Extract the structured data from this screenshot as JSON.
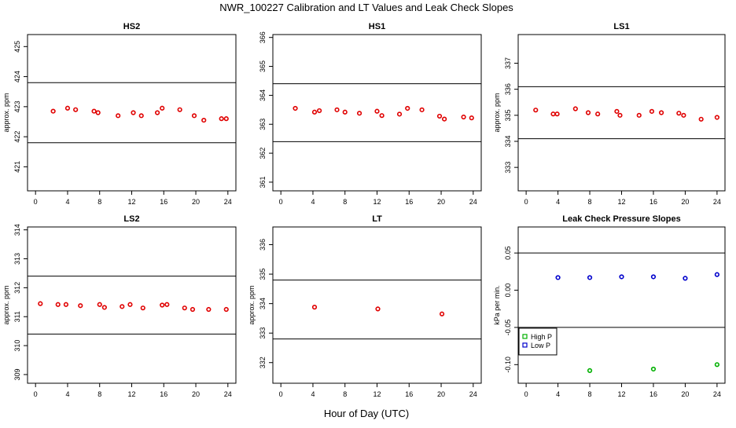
{
  "title": "NWR_100227  Calibration and LT Values and Leak Check Slopes",
  "x_axis_label": "Hour of Day (UTC)",
  "colors": {
    "marker": "#e00000",
    "high_p": "#00b000",
    "low_p": "#0000cc",
    "line": "#000000"
  },
  "chart_data": [
    {
      "type": "scatter",
      "title": "HS2",
      "ylabel": "approx. ppm",
      "xlim": [
        -1,
        25
      ],
      "ylim": [
        420.2,
        425.4
      ],
      "xticks": [
        0,
        4,
        8,
        12,
        16,
        20,
        24
      ],
      "yticks": [
        421,
        422,
        423,
        424,
        425
      ],
      "hlines": [
        421.8,
        423.8
      ],
      "series": [
        {
          "x": [
            2.2,
            4.0,
            5.0,
            7.3,
            7.8,
            10.3,
            12.2,
            13.2,
            15.2,
            15.8,
            18.0,
            19.8,
            21.0,
            23.2,
            23.8
          ],
          "y": [
            422.85,
            422.95,
            422.9,
            422.85,
            422.8,
            422.7,
            422.8,
            422.7,
            422.8,
            422.95,
            422.9,
            422.7,
            422.55,
            422.6,
            422.6
          ]
        }
      ]
    },
    {
      "type": "scatter",
      "title": "HS1",
      "ylabel": "",
      "xlim": [
        -1,
        25
      ],
      "ylim": [
        360.7,
        366.1
      ],
      "xticks": [
        0,
        4,
        8,
        12,
        16,
        20,
        24
      ],
      "yticks": [
        361,
        362,
        363,
        364,
        365,
        366
      ],
      "hlines": [
        362.4,
        364.4
      ],
      "series": [
        {
          "x": [
            1.8,
            4.2,
            4.8,
            7.0,
            8.0,
            9.8,
            12.0,
            12.6,
            14.8,
            15.8,
            17.6,
            19.8,
            20.4,
            22.8,
            23.8
          ],
          "y": [
            363.55,
            363.42,
            363.47,
            363.5,
            363.42,
            363.38,
            363.45,
            363.3,
            363.35,
            363.55,
            363.5,
            363.28,
            363.18,
            363.25,
            363.22
          ]
        }
      ]
    },
    {
      "type": "scatter",
      "title": "LS1",
      "ylabel": "approx. ppm",
      "xlim": [
        -1,
        25
      ],
      "ylim": [
        332.1,
        338.1
      ],
      "xticks": [
        0,
        4,
        8,
        12,
        16,
        20,
        24
      ],
      "yticks": [
        333,
        334,
        335,
        336,
        337
      ],
      "hlines": [
        334.1,
        336.1
      ],
      "series": [
        {
          "x": [
            1.2,
            3.4,
            3.9,
            6.2,
            7.8,
            9.0,
            11.4,
            11.8,
            14.2,
            15.8,
            17.0,
            19.2,
            19.8,
            22.0,
            24.0
          ],
          "y": [
            335.2,
            335.05,
            335.05,
            335.25,
            335.1,
            335.05,
            335.15,
            335.0,
            335.0,
            335.15,
            335.1,
            335.08,
            335.0,
            334.85,
            334.92
          ]
        }
      ]
    },
    {
      "type": "scatter",
      "title": "LS2",
      "ylabel": "approx. ppm",
      "xlim": [
        -1,
        25
      ],
      "ylim": [
        308.7,
        314.1
      ],
      "xticks": [
        0,
        4,
        8,
        12,
        16,
        20,
        24
      ],
      "yticks": [
        309,
        310,
        311,
        312,
        313,
        314
      ],
      "hlines": [
        310.4,
        312.4
      ],
      "series": [
        {
          "x": [
            0.6,
            2.8,
            3.8,
            5.6,
            8.0,
            8.6,
            10.8,
            11.8,
            13.4,
            15.8,
            16.4,
            18.6,
            19.6,
            21.6,
            23.8
          ],
          "y": [
            311.45,
            311.42,
            311.42,
            311.38,
            311.42,
            311.32,
            311.35,
            311.42,
            311.3,
            311.4,
            311.42,
            311.3,
            311.25,
            311.25,
            311.25
          ]
        }
      ]
    },
    {
      "type": "scatter",
      "title": "LT",
      "ylabel": "approx. ppm",
      "xlim": [
        -1,
        25
      ],
      "ylim": [
        331.3,
        336.6
      ],
      "xticks": [
        0,
        4,
        8,
        12,
        16,
        20,
        24
      ],
      "yticks": [
        332,
        333,
        334,
        335,
        336
      ],
      "hlines": [
        332.8,
        334.8
      ],
      "series": [
        {
          "x": [
            4.2,
            12.1,
            20.1
          ],
          "y": [
            333.88,
            333.82,
            333.65
          ]
        }
      ]
    },
    {
      "type": "scatter",
      "title": "Leak Check Pressure Slopes",
      "ylabel": "kPa per min.",
      "xlim": [
        -1,
        25
      ],
      "ylim": [
        -0.125,
        0.085
      ],
      "xticks": [
        0,
        4,
        8,
        12,
        16,
        20,
        24
      ],
      "yticks": [
        -0.1,
        -0.05,
        0.0,
        0.05
      ],
      "ytick_labels": [
        "-0.10",
        "-0.05",
        "0.00",
        "0.05"
      ],
      "hlines": [
        -0.05,
        0.05
      ],
      "legend": {
        "placement": "lower-left",
        "entries": [
          "High P",
          "Low P"
        ]
      },
      "series": [
        {
          "name": "High P",
          "color": "#00b000",
          "x": [
            8.0,
            16.0,
            24.0
          ],
          "y": [
            -0.108,
            -0.106,
            -0.1
          ]
        },
        {
          "name": "Low P",
          "color": "#0000cc",
          "x": [
            4.0,
            8.0,
            12.0,
            16.0,
            20.0,
            24.0
          ],
          "y": [
            0.017,
            0.017,
            0.018,
            0.018,
            0.016,
            0.021
          ]
        }
      ]
    }
  ]
}
